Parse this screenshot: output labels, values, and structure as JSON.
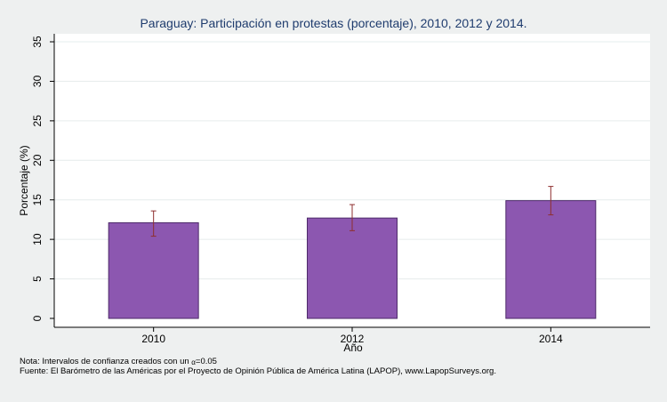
{
  "chart_data": {
    "type": "bar",
    "title": "Paraguay: Participación en protestas (porcentaje), 2010, 2012 y 2014.",
    "xlabel": "Año",
    "ylabel": "Porcentaje (%)",
    "categories": [
      "2010",
      "2012",
      "2014"
    ],
    "values": [
      12.1,
      12.7,
      14.9
    ],
    "ci_lower": [
      10.4,
      11.1,
      13.1
    ],
    "ci_upper": [
      13.6,
      14.4,
      16.7
    ],
    "ylim": [
      0,
      35
    ],
    "yticks": [
      0,
      5,
      10,
      15,
      20,
      25,
      30,
      35
    ],
    "bar_color": "#8c57b0",
    "bar_stroke": "#4e2a6a",
    "errorbar_color": "#8e2f2f",
    "background_color": "#eef0f0",
    "plot_background_color": "#ffffff",
    "title_color": "#1f3c6e",
    "grid": true,
    "legend": "none"
  },
  "notes": {
    "note": "Nota: Intervalos de confianza creados con un ",
    "alpha_symbol": "α",
    "alpha_value": "=0.05",
    "source": "Fuente: El Barómetro de las Américas por el Proyecto de Opinión Pública de América Latina (LAPOP), www.LapopSurveys.org."
  }
}
